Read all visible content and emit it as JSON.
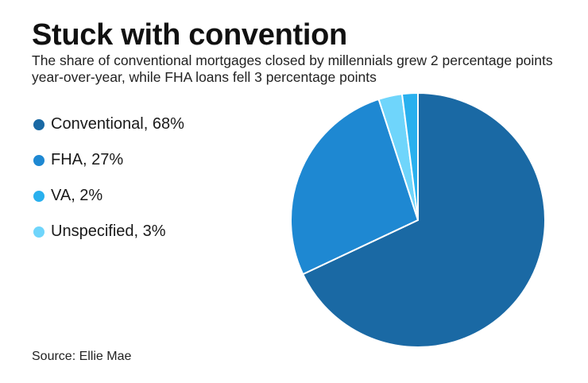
{
  "header": {
    "title": "Stuck with convention",
    "subtitle": "The share of conventional mortgages closed by millennials grew 2 percentage points year-over-year, while FHA loans fell 3 percentage points"
  },
  "legend": [
    {
      "label": "Conventional, 68%",
      "color": "#1a69a4"
    },
    {
      "label": "FHA, 27%",
      "color": "#1e88d2"
    },
    {
      "label": "VA, 2%",
      "color": "#29b0ee"
    },
    {
      "label": "Unspecified, 3%",
      "color": "#6fd5fb"
    }
  ],
  "chart_data": {
    "type": "pie",
    "title": "Stuck with convention",
    "legend_position": "left",
    "slices": [
      {
        "label": "Conventional",
        "value": 68,
        "color": "#1a69a4"
      },
      {
        "label": "FHA",
        "value": 27,
        "color": "#1e88d2"
      },
      {
        "label": "Unspecified",
        "value": 3,
        "color": "#6fd5fb"
      },
      {
        "label": "VA",
        "value": 2,
        "color": "#29b0ee"
      }
    ]
  },
  "footer": {
    "source": "Source: Ellie Mae"
  }
}
